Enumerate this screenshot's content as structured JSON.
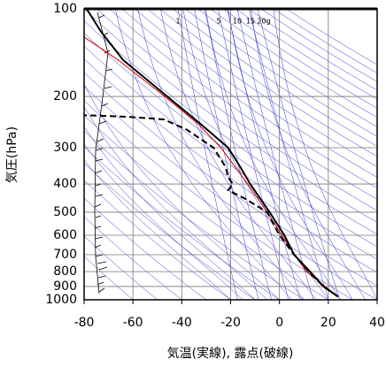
{
  "chart_data": {
    "type": "emagram",
    "xlabel": "気温(実線), 露点(破線)",
    "ylabel": "気圧(hPa)",
    "xlim": [
      -80,
      40
    ],
    "xticks": [
      -80,
      -60,
      -40,
      -20,
      0,
      20,
      40
    ],
    "ylim": [
      1000,
      100
    ],
    "yticks": [
      100,
      200,
      300,
      400,
      500,
      600,
      700,
      800,
      900,
      1000
    ],
    "ylog": true,
    "grid": true,
    "mixing_ratio_labels": [
      "1",
      "5",
      "10",
      "15",
      "20g"
    ],
    "series": [
      {
        "color": "#cc0000",
        "dashed": false,
        "width": 1,
        "pressure": [
          975,
          800,
          600,
          500,
          400,
          300,
          250,
          200,
          150,
          125
        ],
        "values": [
          24,
          11,
          1,
          -5,
          -13,
          -24,
          -33,
          -47,
          -66,
          -80
        ]
      },
      {
        "color": "#000000",
        "dashed": false,
        "width": 2,
        "pressure": [
          975,
          900,
          800,
          700,
          600,
          500,
          400,
          350,
          300,
          250,
          200,
          150,
          120,
          100
        ],
        "values": [
          24,
          18,
          12.5,
          6,
          2,
          -4,
          -12,
          -16,
          -21,
          -32,
          -46,
          -64,
          -73,
          -79
        ]
      },
      {
        "color": "#000000",
        "dashed": true,
        "width": 2,
        "pressure": [
          975,
          900,
          800,
          700,
          600,
          500,
          450,
          420,
          400,
          380,
          350,
          300,
          260,
          245,
          240,
          235,
          232
        ],
        "values": [
          24,
          18,
          12,
          6,
          0,
          -5,
          -14,
          -21,
          -19,
          -21,
          -22,
          -27,
          -38,
          -45,
          -47,
          -62,
          -80
        ]
      }
    ]
  }
}
